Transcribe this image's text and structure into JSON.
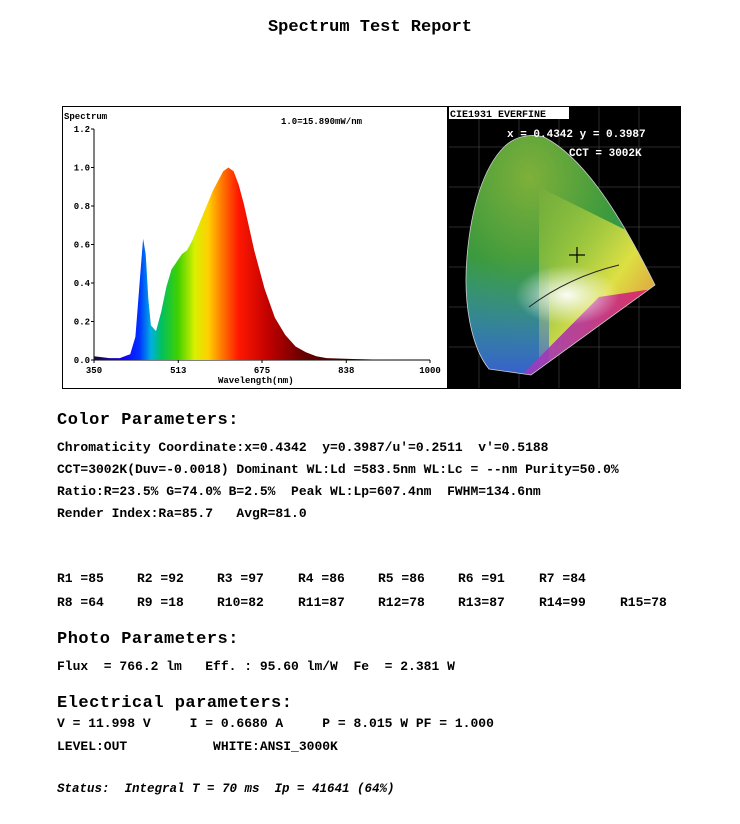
{
  "title": "Spectrum Test Report",
  "spectrum": {
    "label": "Spectrum",
    "scale": "1.0=15.890mW/nm",
    "xlabel": "Wavelength(nm)",
    "xticks": [
      "350",
      "513",
      "675",
      "838",
      "1000"
    ],
    "yticks": [
      "0.0",
      "0.2",
      "0.4",
      "0.6",
      "0.8",
      "1.0",
      "1.2"
    ]
  },
  "chart_data": {
    "type": "area",
    "title": "",
    "xlabel": "Wavelength(nm)",
    "ylabel": "Spectrum",
    "xlim": [
      350,
      1000
    ],
    "ylim": [
      0,
      1.2
    ],
    "x": [
      350,
      380,
      400,
      420,
      430,
      440,
      445,
      450,
      455,
      460,
      470,
      480,
      490,
      500,
      510,
      520,
      530,
      540,
      560,
      580,
      600,
      610,
      620,
      630,
      640,
      650,
      660,
      680,
      700,
      720,
      740,
      760,
      780,
      800,
      850,
      900,
      1000
    ],
    "values": [
      0.02,
      0.01,
      0.01,
      0.03,
      0.12,
      0.46,
      0.63,
      0.55,
      0.32,
      0.18,
      0.15,
      0.25,
      0.38,
      0.47,
      0.51,
      0.55,
      0.57,
      0.62,
      0.75,
      0.88,
      0.98,
      1.0,
      0.98,
      0.91,
      0.81,
      0.69,
      0.57,
      0.37,
      0.22,
      0.13,
      0.07,
      0.04,
      0.02,
      0.01,
      0.005,
      0.002,
      0.0
    ]
  },
  "cie": {
    "header": "CIE1931 EVERFINE",
    "xy": "x = 0.4342 y = 0.3987",
    "cct": "CCT = 3002K"
  },
  "color": {
    "heading": "Color Parameters:",
    "line1": "Chromaticity Coordinate:x=0.4342  y=0.3987/u'=0.2511  v'=0.5188",
    "line2": "CCT=3002K(Duv=-0.0018) Dominant WL:Ld =583.5nm WL:Lc = --nm Purity=50.0%",
    "line3": "Ratio:R=23.5% G=74.0% B=2.5%  Peak WL:Lp=607.4nm  FWHM=134.6nm",
    "line4": "Render Index:Ra=85.7   AvgR=81.0"
  },
  "render_values": {
    "row1": [
      "R1 =85",
      "R2 =92",
      "R3 =97",
      "R4 =86",
      "R5 =86",
      "R6 =91",
      "R7 =84"
    ],
    "row2": [
      "R8 =64",
      "R9 =18",
      "R10=82",
      "R11=87",
      "R12=78",
      "R13=87",
      "R14=99",
      "R15=78"
    ]
  },
  "photo": {
    "heading": "Photo Parameters:",
    "line": "Flux  = 766.2 lm   Eff. : 95.60 lm/W  Fe  = 2.381 W"
  },
  "electrical": {
    "heading": "Electrical parameters:",
    "line1": "V = 11.998 V     I = 0.6680 A     P = 8.015 W PF = 1.000",
    "line2": "LEVEL:OUT           WHITE:ANSI_3000K"
  },
  "status": "Status:  Integral T = 70 ms  Ip = 41641 (64%)",
  "colors": {
    "background": "#ffffff",
    "text": "#000000",
    "cie_background": "#000000"
  }
}
